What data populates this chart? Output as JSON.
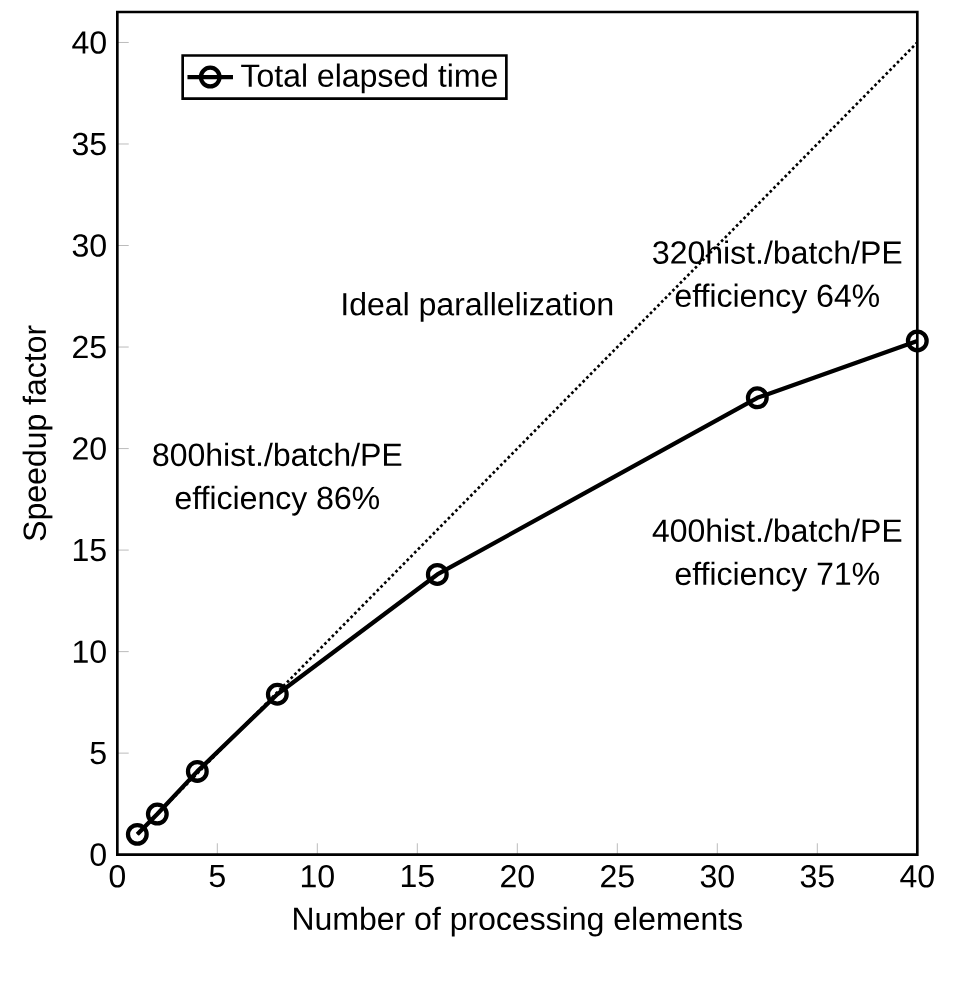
{
  "chart_data": {
    "type": "line",
    "xlabel": "Number of processing elements",
    "ylabel": "Speedup factor",
    "series": [
      {
        "name": "Total elapsed time",
        "color": "#000000",
        "x": [
          1,
          2,
          4,
          8,
          16,
          32,
          40
        ],
        "values": [
          1,
          2,
          4.1,
          7.9,
          13.8,
          22.5,
          25.3
        ],
        "marker": "circle",
        "line_style": "solid"
      },
      {
        "type": "line",
        "color": "#000000",
        "x": [
          1,
          40
        ],
        "values": [
          1,
          40
        ],
        "marker": "none",
        "line_style": "dotted"
      }
    ],
    "xlim": [
      0,
      40
    ],
    "ylim": [
      0,
      41.5
    ],
    "xticks": [
      0,
      5,
      10,
      15,
      20,
      25,
      30,
      35,
      40
    ],
    "yticks": [
      0,
      5,
      10,
      15,
      20,
      25,
      30,
      35,
      40
    ],
    "grid": false,
    "legend": "top left",
    "annotations": [
      "Ideal parallelization",
      "800hist./batch/PE",
      "efficiency 86%",
      "400hist./batch/PE",
      "efficiency 71%",
      "320hist./batch/PE",
      "efficiency 64%"
    ]
  }
}
